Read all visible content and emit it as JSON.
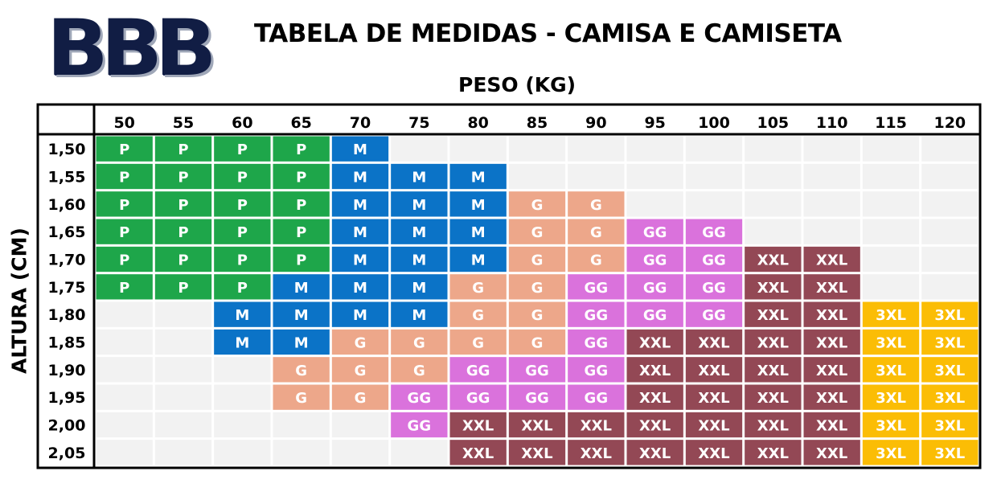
{
  "logo_text": "BBB",
  "title": "TABELA DE MEDIDAS - CAMISA E CAMISETA",
  "chart_data": {
    "type": "table",
    "title": "TABELA DE MEDIDAS - CAMISA E CAMISETA",
    "xlabel": "PESO (KG)",
    "ylabel": "ALTURA (CM)",
    "columns": [
      "50",
      "55",
      "60",
      "65",
      "70",
      "75",
      "80",
      "85",
      "90",
      "95",
      "100",
      "105",
      "110",
      "115",
      "120"
    ],
    "rows": [
      "1,50",
      "1,55",
      "1,60",
      "1,65",
      "1,70",
      "1,75",
      "1,80",
      "1,85",
      "1,90",
      "1,95",
      "2,00",
      "2,05"
    ],
    "cells": [
      [
        "P",
        "P",
        "P",
        "P",
        "M",
        "",
        "",
        "",
        "",
        "",
        "",
        "",
        "",
        "",
        ""
      ],
      [
        "P",
        "P",
        "P",
        "P",
        "M",
        "M",
        "M",
        "",
        "",
        "",
        "",
        "",
        "",
        "",
        ""
      ],
      [
        "P",
        "P",
        "P",
        "P",
        "M",
        "M",
        "M",
        "G",
        "G",
        "",
        "",
        "",
        "",
        "",
        ""
      ],
      [
        "P",
        "P",
        "P",
        "P",
        "M",
        "M",
        "M",
        "G",
        "G",
        "GG",
        "GG",
        "",
        "",
        "",
        ""
      ],
      [
        "P",
        "P",
        "P",
        "P",
        "M",
        "M",
        "M",
        "G",
        "G",
        "GG",
        "GG",
        "XXL",
        "XXL",
        "",
        ""
      ],
      [
        "P",
        "P",
        "P",
        "M",
        "M",
        "M",
        "G",
        "G",
        "GG",
        "GG",
        "GG",
        "XXL",
        "XXL",
        "",
        ""
      ],
      [
        "",
        "",
        "M",
        "M",
        "M",
        "M",
        "G",
        "G",
        "GG",
        "GG",
        "GG",
        "XXL",
        "XXL",
        "3XL",
        "3XL"
      ],
      [
        "",
        "",
        "M",
        "M",
        "G",
        "G",
        "G",
        "G",
        "GG",
        "XXL",
        "XXL",
        "XXL",
        "XXL",
        "3XL",
        "3XL"
      ],
      [
        "",
        "",
        "",
        "G",
        "G",
        "G",
        "GG",
        "GG",
        "GG",
        "XXL",
        "XXL",
        "XXL",
        "XXL",
        "3XL",
        "3XL"
      ],
      [
        "",
        "",
        "",
        "G",
        "G",
        "GG",
        "GG",
        "GG",
        "GG",
        "XXL",
        "XXL",
        "XXL",
        "XXL",
        "3XL",
        "3XL"
      ],
      [
        "",
        "",
        "",
        "",
        "",
        "GG",
        "XXL",
        "XXL",
        "XXL",
        "XXL",
        "XXL",
        "XXL",
        "XXL",
        "3XL",
        "3XL"
      ],
      [
        "",
        "",
        "",
        "",
        "",
        "",
        "XXL",
        "XXL",
        "XXL",
        "XXL",
        "XXL",
        "XXL",
        "XXL",
        "3XL",
        "3XL"
      ]
    ],
    "size_colors": {
      "P": "#1ea64a",
      "M": "#0b73c7",
      "G": "#eda78a",
      "GG": "#da72dc",
      "XXL": "#934855",
      "3XL": "#fbbd05"
    },
    "empty_color": "#f2f2f2",
    "border_color": "#000000"
  }
}
